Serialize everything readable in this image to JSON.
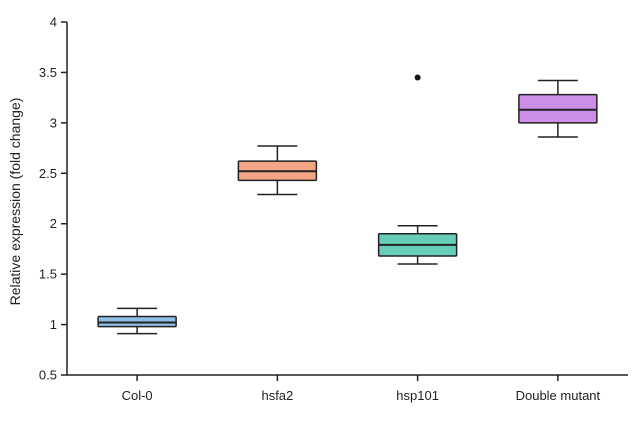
{
  "chart_data": {
    "type": "box",
    "title": "",
    "xlabel": "",
    "ylabel": "Relative expression (fold change)",
    "ylim": [
      0.5,
      4
    ],
    "yticks": [
      "0.5",
      "1",
      "1.5",
      "2",
      "2.5",
      "3",
      "3.5",
      "4"
    ],
    "grid": false,
    "categories": [
      "Col-0",
      "hsfa2",
      "hsp101",
      "Double mutant"
    ],
    "boxes": [
      {
        "category": "Col-0",
        "min": 0.91,
        "q1": 0.98,
        "median": 1.02,
        "q3": 1.08,
        "max": 1.16,
        "color": "#8fbde6",
        "outliers": []
      },
      {
        "category": "hsfa2",
        "min": 2.29,
        "q1": 2.43,
        "median": 2.52,
        "q3": 2.62,
        "max": 2.77,
        "color": "#f4a585",
        "outliers": []
      },
      {
        "category": "hsp101",
        "min": 1.6,
        "q1": 1.68,
        "median": 1.79,
        "q3": 1.9,
        "max": 1.98,
        "color": "#66cdb8",
        "outliers": [
          3.45
        ]
      },
      {
        "category": "Double mutant",
        "min": 2.86,
        "q1": 3.0,
        "median": 3.13,
        "q3": 3.28,
        "max": 3.42,
        "color": "#cc8ee6",
        "outliers": []
      }
    ]
  }
}
